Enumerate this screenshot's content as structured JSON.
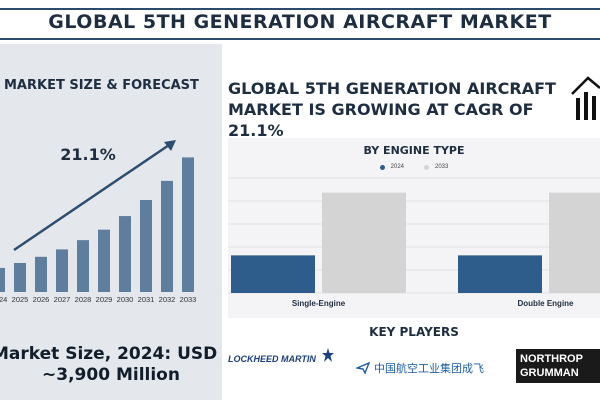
{
  "title": "GLOBAL 5TH GENERATION AIRCRAFT MARKET",
  "left_panel": {
    "heading": "MARKET SIZE & FORECAST",
    "cagr_label": "21.1%",
    "market_size_line1": "Market Size, 2024: USD",
    "market_size_line2": "~3,900 Million"
  },
  "headline": "GLOBAL 5TH GENERATION AIRCRAFT MARKET IS GROWING AT CAGR OF 21.1%",
  "engine_section": {
    "heading": "BY ENGINE TYPE"
  },
  "key_players": {
    "title": "KEY PLAYERS",
    "logos": [
      "LOCKHEED MARTIN",
      "中国航空工业集团成飞",
      "NORTHROP GRUMMAN"
    ]
  },
  "icons": [
    "house-growth-icon",
    "star-icon",
    "aviation-logo-icon"
  ],
  "colors": {
    "bar_main": "#5f7e9e",
    "series_2024": "#2e5d8b",
    "series_2033": "#d4d4d4",
    "panel_bg": "#e4e7ec",
    "title_rule": "#2c4a6b"
  },
  "chart_data": [
    {
      "type": "bar",
      "title": "MARKET SIZE & FORECAST",
      "categories": [
        "2024",
        "2025",
        "2026",
        "2027",
        "2028",
        "2029",
        "2030",
        "2031",
        "2032",
        "2033"
      ],
      "values": [
        3.9,
        4.7,
        5.7,
        6.9,
        8.4,
        10.1,
        12.3,
        14.9,
        18.0,
        21.8
      ],
      "annotation": "21.1%",
      "ylim": [
        0,
        23
      ],
      "grid": false,
      "xlabel": "",
      "ylabel": ""
    },
    {
      "type": "bar",
      "title": "BY ENGINE TYPE",
      "categories": [
        "Single-Engine",
        "Double Engine"
      ],
      "series": [
        {
          "name": "2024",
          "values": [
            1.8,
            1.8
          ]
        },
        {
          "name": "2033",
          "values": [
            4.8,
            4.8
          ]
        }
      ],
      "ylim": [
        0,
        5.5
      ],
      "grid": true,
      "legend": "top-center",
      "xlabel": "",
      "ylabel": ""
    }
  ]
}
